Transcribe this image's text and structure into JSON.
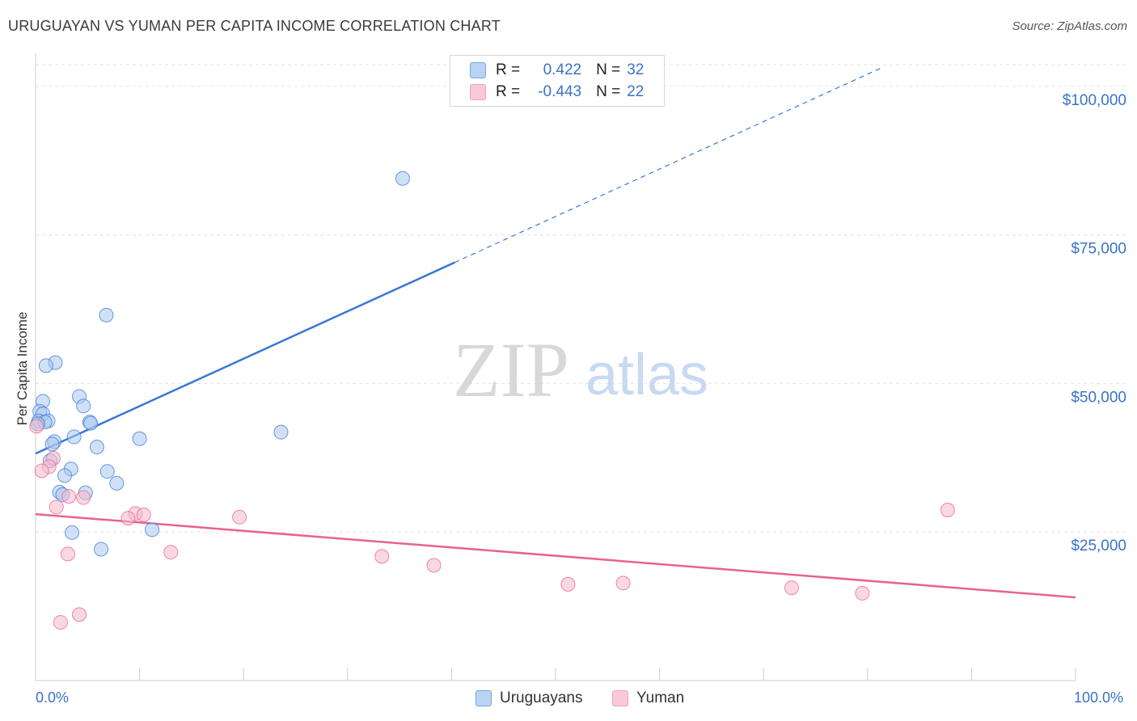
{
  "header": {
    "title": "URUGUAYAN VS YUMAN PER CAPITA INCOME CORRELATION CHART",
    "source": "Source: ZipAtlas.com"
  },
  "legend": {
    "series1": {
      "r_label": "R =",
      "r_value": "0.422",
      "n_label": "N =",
      "n_value": "32"
    },
    "series2": {
      "r_label": "R =",
      "r_value": "-0.443",
      "n_label": "N =",
      "n_value": "22"
    }
  },
  "bottom_legend": {
    "series1": "Uruguayans",
    "series2": "Yuman"
  },
  "watermark": {
    "zip": "ZIP",
    "atlas": "atlas"
  },
  "colors": {
    "blue": "#3a78d4",
    "blue_fill": "#aac8f0",
    "pink": "#e8628f",
    "pink_fill": "#f5b8cb",
    "axis_text": "#3a73c7"
  },
  "chart_data": {
    "type": "scatter",
    "title": "URUGUAYAN VS YUMAN PER CAPITA INCOME CORRELATION CHART",
    "xlabel": "",
    "ylabel": "Per Capita Income",
    "xlim": [
      0,
      100
    ],
    "ylim": [
      0,
      105000
    ],
    "x_tick_labels": [
      "0.0%",
      "100.0%"
    ],
    "y_ticks": [
      25000,
      50000,
      75000,
      100000
    ],
    "y_tick_labels": [
      "$25,000",
      "$50,000",
      "$75,000",
      "$100,000"
    ],
    "grid": true,
    "series": [
      {
        "name": "Uruguayans",
        "color": "#3a78d4",
        "points": [
          [
            35.3,
            84500
          ],
          [
            6.8,
            61500
          ],
          [
            1.9,
            53500
          ],
          [
            1.0,
            53000
          ],
          [
            4.2,
            47800
          ],
          [
            0.7,
            47000
          ],
          [
            4.6,
            46200
          ],
          [
            0.4,
            45300
          ],
          [
            0.7,
            44900
          ],
          [
            0.3,
            43700
          ],
          [
            1.2,
            43700
          ],
          [
            0.9,
            43500
          ],
          [
            5.2,
            43500
          ],
          [
            5.3,
            43300
          ],
          [
            23.6,
            41800
          ],
          [
            3.7,
            41000
          ],
          [
            10.0,
            40700
          ],
          [
            1.8,
            40200
          ],
          [
            1.6,
            39800
          ],
          [
            5.9,
            39300
          ],
          [
            1.4,
            37000
          ],
          [
            3.4,
            35600
          ],
          [
            6.9,
            35200
          ],
          [
            2.8,
            34500
          ],
          [
            7.8,
            33200
          ],
          [
            2.3,
            31700
          ],
          [
            2.6,
            31300
          ],
          [
            4.8,
            31600
          ],
          [
            3.5,
            24900
          ],
          [
            11.2,
            25400
          ],
          [
            6.3,
            22100
          ],
          [
            0.2,
            43200
          ]
        ],
        "trend": {
          "x": [
            0,
            100
          ],
          "y": [
            38200,
            118000
          ],
          "solid_until_x": 40.3
        }
      },
      {
        "name": "Yuman",
        "color": "#e8628f",
        "points": [
          [
            0.1,
            42800
          ],
          [
            1.7,
            37400
          ],
          [
            1.3,
            36000
          ],
          [
            0.6,
            35300
          ],
          [
            3.2,
            31000
          ],
          [
            4.6,
            30800
          ],
          [
            2.0,
            29200
          ],
          [
            9.6,
            28100
          ],
          [
            10.4,
            27900
          ],
          [
            8.9,
            27300
          ],
          [
            19.6,
            27500
          ],
          [
            87.7,
            28700
          ],
          [
            3.1,
            21300
          ],
          [
            13.0,
            21600
          ],
          [
            33.3,
            20900
          ],
          [
            38.3,
            19400
          ],
          [
            51.2,
            16200
          ],
          [
            56.5,
            16400
          ],
          [
            72.7,
            15600
          ],
          [
            79.5,
            14700
          ],
          [
            4.2,
            11100
          ],
          [
            2.4,
            9800
          ]
        ],
        "trend": {
          "x": [
            0,
            100
          ],
          "y": [
            28000,
            14000
          ]
        }
      }
    ]
  }
}
